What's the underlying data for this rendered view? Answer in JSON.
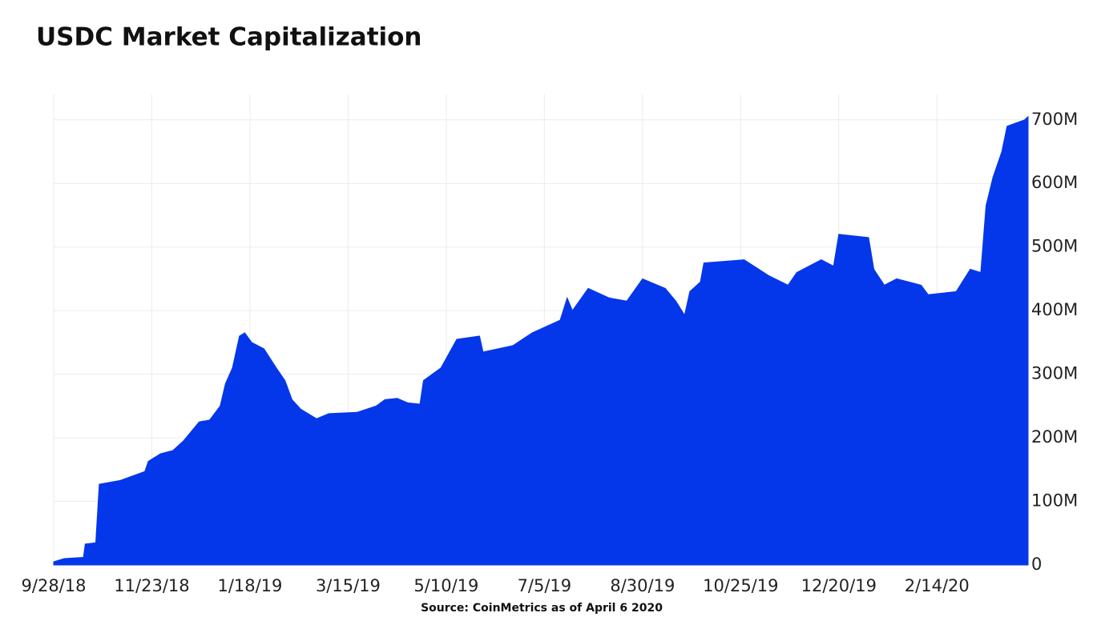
{
  "chart_data": {
    "type": "area",
    "title": "USDC Market Capitalization",
    "source": "Source: CoinMetrics as of April 6 2020",
    "color": "#0537ea",
    "grid": true,
    "y_axis_side": "right",
    "x": [
      "2018-09-28",
      "2018-10-04",
      "2018-10-15",
      "2018-10-16",
      "2018-10-22",
      "2018-10-24",
      "2018-11-05",
      "2018-11-19",
      "2018-11-21",
      "2018-11-28",
      "2018-12-05",
      "2018-12-11",
      "2018-12-20",
      "2018-12-26",
      "2019-01-01",
      "2019-01-04",
      "2019-01-08",
      "2019-01-12",
      "2019-01-15",
      "2019-01-19",
      "2019-01-26",
      "2019-02-02",
      "2019-02-07",
      "2019-02-11",
      "2019-02-16",
      "2019-02-25",
      "2019-03-04",
      "2019-03-20",
      "2019-03-31",
      "2019-04-05",
      "2019-04-12",
      "2019-04-18",
      "2019-04-25",
      "2019-04-27",
      "2019-05-07",
      "2019-05-16",
      "2019-05-29",
      "2019-05-31",
      "2019-06-17",
      "2019-06-28",
      "2019-07-14",
      "2019-07-18",
      "2019-07-21",
      "2019-07-30",
      "2019-08-11",
      "2019-08-21",
      "2019-08-30",
      "2019-09-12",
      "2019-09-18",
      "2019-09-23",
      "2019-09-26",
      "2019-10-02",
      "2019-10-04",
      "2019-10-27",
      "2019-11-10",
      "2019-11-21",
      "2019-11-26",
      "2019-12-10",
      "2019-12-17",
      "2019-12-20",
      "2020-01-06",
      "2020-01-09",
      "2020-01-15",
      "2020-01-22",
      "2020-02-05",
      "2020-02-09",
      "2020-02-25",
      "2020-03-04",
      "2020-03-10",
      "2020-03-13",
      "2020-03-17",
      "2020-03-22",
      "2020-03-25",
      "2020-04-04",
      "2020-04-06"
    ],
    "values": [
      5,
      10,
      12,
      33,
      35,
      127,
      133,
      147,
      163,
      175,
      180,
      195,
      225,
      228,
      250,
      285,
      310,
      360,
      365,
      350,
      340,
      310,
      290,
      260,
      245,
      230,
      238,
      240,
      250,
      260,
      262,
      255,
      253,
      290,
      310,
      355,
      360,
      335,
      345,
      365,
      385,
      420,
      400,
      435,
      420,
      415,
      450,
      435,
      415,
      393,
      430,
      445,
      475,
      480,
      455,
      440,
      460,
      480,
      470,
      520,
      515,
      465,
      440,
      450,
      440,
      425,
      430,
      465,
      460,
      565,
      610,
      650,
      690,
      700,
      705
    ],
    "xlim": [
      "2018-09-28",
      "2020-04-06"
    ],
    "xticks": [
      {
        "value": "2018-09-28",
        "label": "9/28/18"
      },
      {
        "value": "2018-11-23",
        "label": "11/23/18"
      },
      {
        "value": "2019-01-18",
        "label": "1/18/19"
      },
      {
        "value": "2019-03-15",
        "label": "3/15/19"
      },
      {
        "value": "2019-05-10",
        "label": "5/10/19"
      },
      {
        "value": "2019-07-05",
        "label": "7/5/19"
      },
      {
        "value": "2019-08-30",
        "label": "8/30/19"
      },
      {
        "value": "2019-10-25",
        "label": "10/25/19"
      },
      {
        "value": "2019-12-20",
        "label": "12/20/19"
      },
      {
        "value": "2020-02-14",
        "label": "2/14/20"
      }
    ],
    "ylim": [
      0,
      740
    ],
    "yticks": [
      0,
      {
        "value": 100,
        "label": "100M"
      },
      {
        "value": 200,
        "label": "200M"
      },
      {
        "value": 300,
        "label": "300M"
      },
      {
        "value": 400,
        "label": "400M"
      },
      {
        "value": 500,
        "label": "500M"
      },
      {
        "value": 600,
        "label": "600M"
      },
      {
        "value": 700,
        "label": "700M"
      }
    ]
  }
}
